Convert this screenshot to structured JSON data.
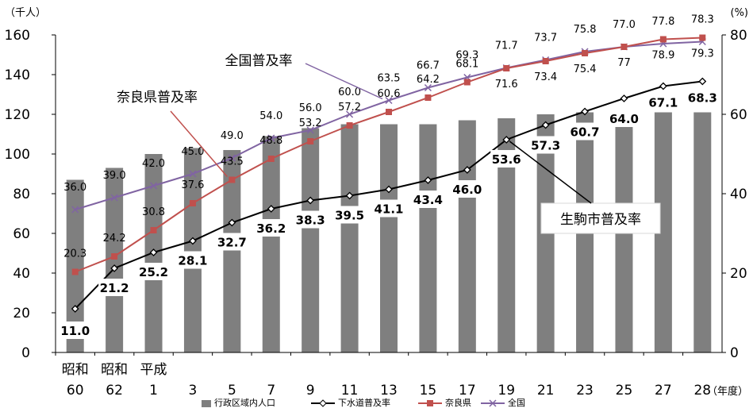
{
  "chart_data": {
    "type": "bar",
    "left_axis_unit": "（千人）",
    "right_axis_unit": "(%)",
    "x_axis_unit": "（年度）",
    "left_ticks": [
      "0",
      "20",
      "40",
      "60",
      "80",
      "100",
      "120",
      "140",
      "160"
    ],
    "right_ticks": [
      "0",
      "20",
      "40",
      "60",
      "80"
    ],
    "ylim_left": [
      0,
      160
    ],
    "ylim_right": [
      0,
      80
    ],
    "era_labels": [
      {
        "index": 0,
        "text": "昭和"
      },
      {
        "index": 1,
        "text": "昭和"
      },
      {
        "index": 2,
        "text": "平成"
      }
    ],
    "categories": [
      "60",
      "62",
      "1",
      "3",
      "5",
      "7",
      "9",
      "11",
      "13",
      "15",
      "17",
      "19",
      "21",
      "23",
      "25",
      "27",
      "28"
    ],
    "population": [
      87,
      93,
      100,
      103,
      102,
      109,
      113,
      115,
      115,
      115,
      117,
      118,
      120,
      121,
      121,
      121,
      121
    ],
    "series": [
      {
        "name": "下水道普及率",
        "color": "#000000",
        "marker": "diamond",
        "values": [
          11.0,
          21.2,
          25.2,
          28.1,
          32.7,
          36.2,
          38.3,
          39.5,
          41.1,
          43.4,
          46.0,
          53.6,
          57.3,
          60.7,
          64.0,
          67.1,
          68.3
        ],
        "labels": [
          "11.0",
          "21.2",
          "25.2",
          "28.1",
          "32.7",
          "36.2",
          "38.3",
          "39.5",
          "41.1",
          "43.4",
          "46.0",
          "53.6",
          "57.3",
          "60.7",
          "64.0",
          "67.1",
          "68.3"
        ]
      },
      {
        "name": "奈良県",
        "color": "#c0504d",
        "marker": "square",
        "values": [
          20.3,
          24.2,
          30.8,
          37.6,
          43.5,
          48.8,
          53.2,
          57.2,
          60.6,
          64.2,
          68.1,
          71.6,
          73.4,
          75.4,
          77.0,
          78.9,
          79.3
        ],
        "labels": [
          "20.3",
          "24.2",
          "30.8",
          "37.6",
          "43.5",
          "48.8",
          "53.2",
          "57.2",
          "60.6",
          "64.2",
          "68.1",
          "71.6",
          "73.4",
          "75.4",
          "77",
          "78.9",
          "79.3"
        ]
      },
      {
        "name": "全国",
        "color": "#8064a2",
        "marker": "x",
        "values": [
          36.0,
          39.0,
          42.0,
          45.0,
          49.0,
          54.0,
          56.0,
          60.0,
          63.5,
          66.7,
          69.3,
          71.7,
          73.7,
          75.8,
          77.0,
          77.8,
          78.3
        ],
        "labels": [
          "36.0",
          "39.0",
          "42.0",
          "45.0",
          "49.0",
          "54.0",
          "56.0",
          "60.0",
          "63.5",
          "66.7",
          "69.3",
          "71.7",
          "73.7",
          "75.8",
          "77.0",
          "77.8",
          "78.3"
        ]
      }
    ],
    "bar_series_name": "行政区域内人口",
    "bar_color": "#7f7f7f",
    "annotations": [
      {
        "text": "全国普及率",
        "color": "#8064a2"
      },
      {
        "text": "奈良県普及率",
        "color": "#c0504d"
      },
      {
        "text": "生駒市普及率",
        "color": "#000000"
      }
    ],
    "legend_placement": "bottom-center",
    "grid": false
  }
}
